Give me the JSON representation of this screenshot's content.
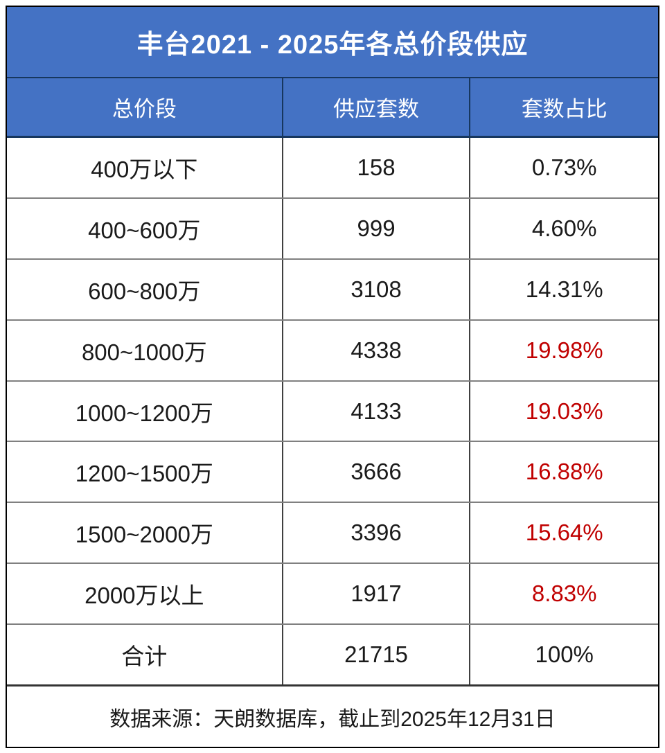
{
  "title": "丰台2021 - 2025年各总价段供应",
  "colors": {
    "header_blue": "#4472C4",
    "divider_navy": "#17375E",
    "red": "#C00000",
    "border_black": "#000000",
    "row_line_gray": "#808080"
  },
  "table": {
    "columns": {
      "price_range": "总价段",
      "supply_units": "供应套数",
      "unit_share": "套数占比"
    },
    "rows": [
      {
        "range": "400万以下",
        "units": "158",
        "share": "0.73%",
        "highlight": false
      },
      {
        "range": "400~600万",
        "units": "999",
        "share": "4.60%",
        "highlight": false
      },
      {
        "range": "600~800万",
        "units": "3108",
        "share": "14.31%",
        "highlight": false
      },
      {
        "range": "800~1000万",
        "units": "4338",
        "share": "19.98%",
        "highlight": true
      },
      {
        "range": "1000~1200万",
        "units": "4133",
        "share": "19.03%",
        "highlight": true
      },
      {
        "range": "1200~1500万",
        "units": "3666",
        "share": "16.88%",
        "highlight": true
      },
      {
        "range": "1500~2000万",
        "units": "3396",
        "share": "15.64%",
        "highlight": true
      },
      {
        "range": "2000万以上",
        "units": "1917",
        "share": "8.83%",
        "highlight": true
      }
    ],
    "total_row": {
      "range": "合计",
      "units": "21715",
      "share": "100%"
    }
  },
  "footer": "数据来源：天朗数据库，截止到2025年12月31日",
  "chart_data": {
    "type": "table",
    "title": "丰台2021 - 2025年各总价段供应",
    "columns": [
      "总价段",
      "供应套数",
      "套数占比"
    ],
    "categories": [
      "400万以下",
      "400~600万",
      "600~800万",
      "800~1000万",
      "1000~1200万",
      "1200~1500万",
      "1500~2000万",
      "2000万以上"
    ],
    "series": [
      {
        "name": "供应套数",
        "values": [
          158,
          999,
          3108,
          4338,
          4133,
          3666,
          3396,
          1917
        ]
      },
      {
        "name": "套数占比(%)",
        "values": [
          0.73,
          4.6,
          14.31,
          19.98,
          19.03,
          16.88,
          15.64,
          8.83
        ]
      }
    ],
    "total": {
      "供应套数": 21715,
      "套数占比(%)": 100
    },
    "highlighted_share_rows": [
      "800~1000万",
      "1000~1200万",
      "1200~1500万",
      "1500~2000万",
      "2000万以上"
    ],
    "source_note": "数据来源：天朗数据库，截止到2025年12月31日"
  }
}
